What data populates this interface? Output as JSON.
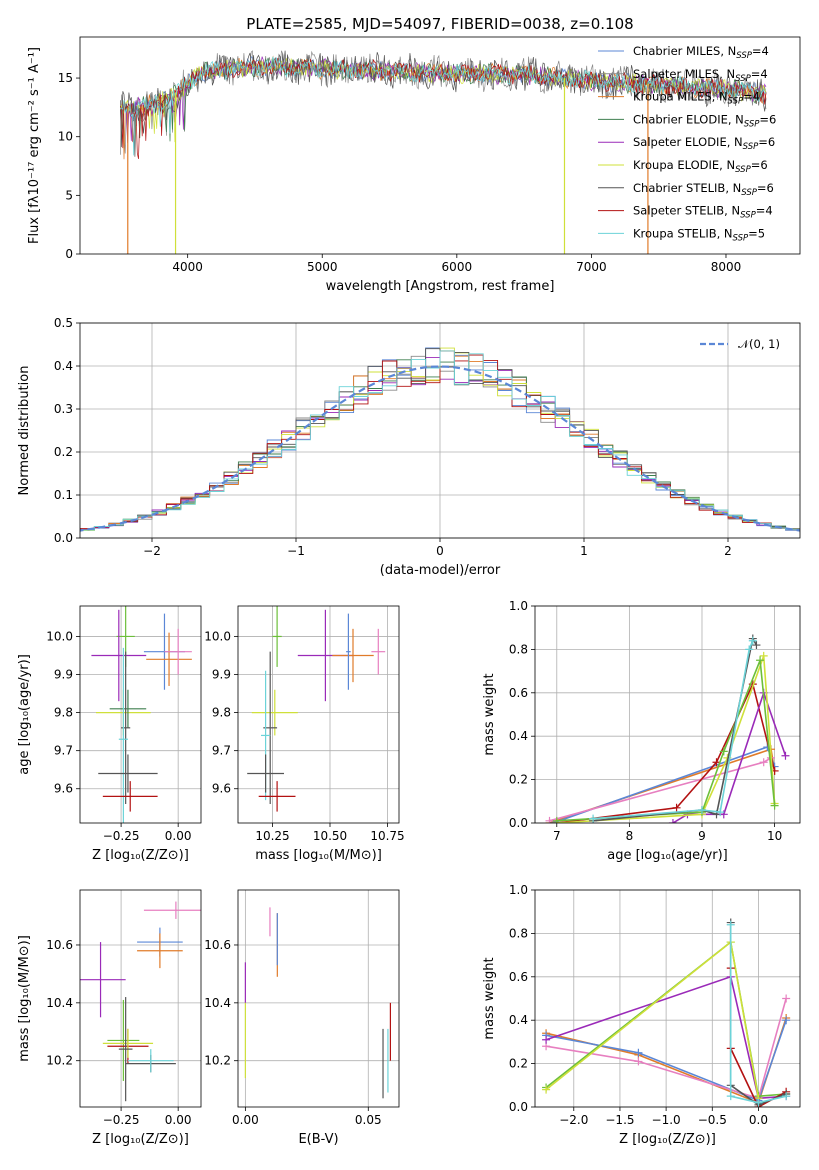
{
  "figure_title": "PLATE=2585, MJD=54097, FIBERID=0038, z=0.108",
  "colors": {
    "c_miles": "#5b87d6",
    "s_miles": "#8a8a8a",
    "k_miles": "#e07b2a",
    "c_elodie": "#3f7f4f",
    "s_elodie": "#9a2ab8",
    "k_elodie": "#cfe03a",
    "c_stelib": "#555555",
    "s_stelib": "#b31212",
    "k_stelib": "#6cd3d8",
    "pink": "#e77fc0",
    "green": "#6cbf3a",
    "gaussian": "#5b87d6"
  },
  "chart_data": [
    {
      "id": "spectrum",
      "type": "line",
      "xlabel": "wavelength [Angstrom, rest frame]",
      "ylabel": "Flux [fλ10⁻¹⁷ erg cm⁻² s⁻¹ A⁻¹]",
      "xlim": [
        3200,
        8550
      ],
      "ylim": [
        0,
        18.5
      ],
      "xticks": [
        "4000",
        "5000",
        "6000",
        "7000",
        "8000"
      ],
      "yticks": [
        "0",
        "5",
        "10",
        "15"
      ],
      "legend_position": "right",
      "series": [
        {
          "name": "Chabrier MILES, N",
          "sub": "SSP",
          "suffix": "=4",
          "color": "c_miles"
        },
        {
          "name": "Salpeter MILES, N",
          "sub": "SSP",
          "suffix": "=4",
          "color": "s_miles"
        },
        {
          "name": "Kroupa MILES, N",
          "sub": "SSP",
          "suffix": "=4",
          "color": "k_miles"
        },
        {
          "name": "Chabrier ELODIE, N",
          "sub": "SSP",
          "suffix": "=6",
          "color": "c_elodie"
        },
        {
          "name": "Salpeter ELODIE, N",
          "sub": "SSP",
          "suffix": "=6",
          "color": "s_elodie"
        },
        {
          "name": "Kroupa ELODIE, N",
          "sub": "SSP",
          "suffix": "=6",
          "color": "k_elodie"
        },
        {
          "name": "Chabrier STELIB, N",
          "sub": "SSP",
          "suffix": "=6",
          "color": "c_stelib"
        },
        {
          "name": "Salpeter STELIB, N",
          "sub": "SSP",
          "suffix": "=4",
          "color": "s_stelib"
        },
        {
          "name": "Kroupa STELIB, N",
          "sub": "SSP",
          "suffix": "=5",
          "color": "k_stelib"
        }
      ],
      "continuum": [
        [
          3500,
          12.5
        ],
        [
          3650,
          12.5
        ],
        [
          3800,
          13
        ],
        [
          3950,
          14
        ],
        [
          4100,
          15.5
        ],
        [
          4500,
          16
        ],
        [
          5000,
          15.8
        ],
        [
          5500,
          15.6
        ],
        [
          6000,
          15.4
        ],
        [
          6500,
          15.3
        ],
        [
          7000,
          14.8
        ],
        [
          7500,
          14.4
        ],
        [
          8000,
          14.1
        ],
        [
          8300,
          13.6
        ]
      ],
      "drops": [
        [
          3555,
          "k_miles"
        ],
        [
          3910,
          "k_elodie"
        ],
        [
          6800,
          "k_elodie"
        ],
        [
          7420,
          "k_miles"
        ]
      ]
    },
    {
      "id": "residuals",
      "type": "histogram",
      "xlabel": "(data-model)/error",
      "ylabel": "Normed distribution",
      "xlim": [
        -2.5,
        2.5
      ],
      "ylim": [
        0,
        0.5
      ],
      "xticks": [
        "−2",
        "−1",
        "0",
        "1",
        "2"
      ],
      "yticks": [
        "0.0",
        "0.1",
        "0.2",
        "0.3",
        "0.4",
        "0.5"
      ],
      "legend": "𝒩(0, 1)",
      "gaussian": {
        "mean": 0,
        "sigma": 1
      }
    },
    {
      "id": "age_vs_z",
      "type": "errorbar",
      "xlabel": "Z [log₁₀(Z/Z⊙)]",
      "ylabel": "age  [log₁₀(age/yr)]",
      "xlim": [
        -0.43,
        0.1
      ],
      "ylim": [
        9.51,
        10.08
      ],
      "xticks": [
        "−0.25",
        "0.00"
      ],
      "yticks": [
        "9.6",
        "9.7",
        "9.8",
        "9.9",
        "10.0"
      ],
      "points": [
        {
          "x": -0.23,
          "xe": 0.04,
          "y": 10.0,
          "ye": 0.08,
          "c": "green"
        },
        {
          "x": -0.26,
          "xe": 0.12,
          "y": 9.95,
          "ye": 0.12,
          "c": "s_elodie"
        },
        {
          "x": -0.06,
          "xe": 0.09,
          "y": 9.96,
          "ye": 0.1,
          "c": "c_miles"
        },
        {
          "x": -0.04,
          "xe": 0.1,
          "y": 9.94,
          "ye": 0.07,
          "c": "k_miles"
        },
        {
          "x": 0.0,
          "xe": 0.06,
          "y": 9.96,
          "ye": 0.06,
          "c": "pink"
        },
        {
          "x": -0.24,
          "xe": 0.12,
          "y": 9.8,
          "ye": 0.06,
          "c": "k_elodie"
        },
        {
          "x": -0.22,
          "xe": 0.08,
          "y": 9.81,
          "ye": 0.05,
          "c": "c_elodie"
        },
        {
          "x": -0.23,
          "xe": 0.02,
          "y": 9.76,
          "ye": 0.2,
          "c": "c_stelib"
        },
        {
          "x": -0.24,
          "xe": 0.02,
          "y": 9.73,
          "ye": 0.24,
          "c": "k_stelib"
        },
        {
          "x": -0.22,
          "xe": 0.13,
          "y": 9.64,
          "ye": 0.05,
          "c": "c_stelib"
        },
        {
          "x": -0.21,
          "xe": 0.12,
          "y": 9.58,
          "ye": 0.04,
          "c": "s_stelib"
        }
      ]
    },
    {
      "id": "age_vs_mass",
      "type": "errorbar",
      "xlabel": "mass [log₁₀(M/M⊙)]",
      "ylabel": "",
      "xlim": [
        10.1,
        10.8
      ],
      "ylim": [
        9.51,
        10.08
      ],
      "xticks": [
        "10.25",
        "10.50",
        "10.75"
      ],
      "yticks": [
        "9.6",
        "9.7",
        "9.8",
        "9.9",
        "10.0"
      ],
      "points": [
        {
          "x": 10.27,
          "xe": 0.02,
          "y": 10.0,
          "ye": 0.08,
          "c": "green"
        },
        {
          "x": 10.48,
          "xe": 0.12,
          "y": 9.95,
          "ye": 0.12,
          "c": "s_elodie"
        },
        {
          "x": 10.6,
          "xe": 0.09,
          "y": 9.95,
          "ye": 0.07,
          "c": "k_miles"
        },
        {
          "x": 10.58,
          "xe": 0.01,
          "y": 9.96,
          "ye": 0.1,
          "c": "c_miles"
        },
        {
          "x": 10.71,
          "xe": 0.03,
          "y": 9.96,
          "ye": 0.06,
          "c": "pink"
        },
        {
          "x": 10.26,
          "xe": 0.1,
          "y": 9.8,
          "ye": 0.06,
          "c": "k_elodie"
        },
        {
          "x": 10.24,
          "xe": 0.03,
          "y": 9.76,
          "ye": 0.2,
          "c": "c_stelib"
        },
        {
          "x": 10.22,
          "xe": 0.02,
          "y": 9.74,
          "ye": 0.17,
          "c": "k_stelib"
        },
        {
          "x": 10.22,
          "xe": 0.08,
          "y": 9.64,
          "ye": 0.05,
          "c": "c_stelib"
        },
        {
          "x": 10.27,
          "xe": 0.08,
          "y": 9.58,
          "ye": 0.04,
          "c": "s_stelib"
        }
      ]
    },
    {
      "id": "mass_weight_vs_age",
      "type": "line",
      "xlabel": "age  [log₁₀(age/yr)]",
      "ylabel": "mass weight",
      "xlim": [
        6.7,
        10.35
      ],
      "ylim": [
        0,
        1
      ],
      "xticks": [
        "7",
        "8",
        "9",
        "10"
      ],
      "yticks": [
        "0.0",
        "0.2",
        "0.4",
        "0.6",
        "0.8",
        "1.0"
      ],
      "series": [
        {
          "c": "k_miles",
          "pts": [
            [
              6.9,
              0
            ],
            [
              9.95,
              0.34
            ],
            [
              10.0,
              0.24
            ]
          ]
        },
        {
          "c": "c_miles",
          "pts": [
            [
              6.95,
              0
            ],
            [
              9.9,
              0.35
            ],
            [
              10.0,
              0.26
            ]
          ]
        },
        {
          "c": "pink",
          "pts": [
            [
              6.9,
              0.01
            ],
            [
              9.85,
              0.28
            ],
            [
              9.95,
              0.3
            ]
          ]
        },
        {
          "c": "s_stelib",
          "pts": [
            [
              7.0,
              0
            ],
            [
              8.65,
              0.07
            ],
            [
              9.2,
              0.28
            ],
            [
              9.7,
              0.64
            ],
            [
              10.0,
              0.24
            ]
          ]
        },
        {
          "c": "s_elodie",
          "pts": [
            [
              8.6,
              0
            ],
            [
              8.8,
              0.04
            ],
            [
              9.3,
              0.04
            ],
            [
              9.85,
              0.6
            ],
            [
              10.15,
              0.31
            ]
          ]
        },
        {
          "c": "k_elodie",
          "pts": [
            [
              7.0,
              0
            ],
            [
              9.0,
              0.04
            ],
            [
              9.35,
              0.3
            ],
            [
              9.85,
              0.77
            ],
            [
              10.0,
              0.09
            ]
          ]
        },
        {
          "c": "green",
          "pts": [
            [
              7.0,
              0.01
            ],
            [
              9.0,
              0.05
            ],
            [
              9.3,
              0.33
            ],
            [
              9.8,
              0.75
            ],
            [
              10.0,
              0.08
            ]
          ]
        },
        {
          "c": "c_stelib",
          "pts": [
            [
              7.5,
              0.01
            ],
            [
              9.0,
              0.06
            ],
            [
              9.2,
              0.04
            ],
            [
              9.7,
              0.85
            ],
            [
              9.75,
              0.82
            ]
          ]
        },
        {
          "c": "k_stelib",
          "pts": [
            [
              7.5,
              0.02
            ],
            [
              9.0,
              0.06
            ],
            [
              9.25,
              0.05
            ],
            [
              9.65,
              0.8
            ],
            [
              9.7,
              0.84
            ]
          ]
        }
      ]
    },
    {
      "id": "mass_vs_z",
      "type": "errorbar",
      "xlabel": "Z [log₁₀(Z/Z⊙)]",
      "ylabel": "mass [log₁₀(M/M⊙)]",
      "xlim": [
        -0.43,
        0.1
      ],
      "ylim": [
        10.04,
        10.79
      ],
      "xticks": [
        "−0.25",
        "0.00"
      ],
      "yticks": [
        "10.2",
        "10.4",
        "10.6"
      ],
      "points": [
        {
          "x": -0.01,
          "xe": 0.14,
          "y": 10.72,
          "ye": 0.03,
          "c": "pink"
        },
        {
          "x": -0.08,
          "xe": 0.1,
          "y": 10.61,
          "ye": 0.05,
          "c": "c_miles"
        },
        {
          "x": -0.08,
          "xe": 0.1,
          "y": 10.58,
          "ye": 0.06,
          "c": "k_miles"
        },
        {
          "x": -0.34,
          "xe": 0.11,
          "y": 10.48,
          "ye": 0.13,
          "c": "s_elodie"
        },
        {
          "x": -0.24,
          "xe": 0.07,
          "y": 10.27,
          "ye": 0.14,
          "c": "green"
        },
        {
          "x": -0.22,
          "xe": 0.09,
          "y": 10.25,
          "ye": 0.06,
          "c": "s_stelib"
        },
        {
          "x": -0.22,
          "xe": 0.11,
          "y": 10.26,
          "ye": 0.05,
          "c": "k_elodie"
        },
        {
          "x": -0.23,
          "xe": 0.03,
          "y": 10.24,
          "ye": 0.18,
          "c": "c_stelib"
        },
        {
          "x": -0.12,
          "xe": 0.11,
          "y": 10.19,
          "ye": 0.03,
          "c": "c_stelib"
        },
        {
          "x": -0.12,
          "xe": 0.1,
          "y": 10.2,
          "ye": 0.04,
          "c": "k_stelib"
        }
      ]
    },
    {
      "id": "mass_vs_ebv",
      "type": "errorbar",
      "xlabel": "E(B-V)",
      "ylabel": "",
      "xlim": [
        -0.003,
        0.0625
      ],
      "ylim": [
        10.04,
        10.79
      ],
      "xticks": [
        "0.00",
        "0.05"
      ],
      "yticks": [
        "10.2",
        "10.4",
        "10.6"
      ],
      "points": [
        {
          "x": 0.01,
          "xe": 0,
          "y": 10.68,
          "ye": 0.05,
          "c": "pink"
        },
        {
          "x": 0.013,
          "xe": 0,
          "y": 10.6,
          "ye": 0.11,
          "c": "k_miles"
        },
        {
          "x": 0.013,
          "xe": 0,
          "y": 10.62,
          "ye": 0.09,
          "c": "c_miles"
        },
        {
          "x": 0.0,
          "xe": 0,
          "y": 10.47,
          "ye": 0.07,
          "c": "s_elodie"
        },
        {
          "x": 0.0,
          "xe": 0,
          "y": 10.27,
          "ye": 0.13,
          "c": "k_elodie"
        },
        {
          "x": 0.059,
          "xe": 0,
          "y": 10.3,
          "ye": 0.1,
          "c": "s_stelib"
        },
        {
          "x": 0.058,
          "xe": 0,
          "y": 10.2,
          "ye": 0.11,
          "c": "k_stelib"
        },
        {
          "x": 0.056,
          "xe": 0,
          "y": 10.19,
          "ye": 0.12,
          "c": "c_stelib"
        }
      ]
    },
    {
      "id": "mass_weight_vs_z",
      "type": "line",
      "xlabel": "Z [log₁₀(Z/Z⊙)]",
      "ylabel": "mass weight",
      "xlim": [
        -2.42,
        0.45
      ],
      "ylim": [
        0,
        1
      ],
      "xticks": [
        "−2.0",
        "−1.5",
        "−1.0",
        "−0.5",
        "0.0"
      ],
      "yticks": [
        "0.0",
        "0.2",
        "0.4",
        "0.6",
        "0.8",
        "1.0"
      ],
      "series": [
        {
          "c": "k_miles",
          "pts": [
            [
              -2.3,
              0.34
            ],
            [
              -1.3,
              0.24
            ],
            [
              0.0,
              0.02
            ],
            [
              0.3,
              0.41
            ]
          ]
        },
        {
          "c": "c_miles",
          "pts": [
            [
              -2.3,
              0.33
            ],
            [
              -1.3,
              0.25
            ],
            [
              0.0,
              0.03
            ],
            [
              0.3,
              0.4
            ]
          ]
        },
        {
          "c": "pink",
          "pts": [
            [
              -2.3,
              0.28
            ],
            [
              -1.3,
              0.21
            ],
            [
              0.0,
              0.04
            ],
            [
              0.3,
              0.5
            ]
          ]
        },
        {
          "c": "s_elodie",
          "pts": [
            [
              -2.3,
              0.31
            ],
            [
              -0.3,
              0.6
            ],
            [
              0.0,
              0.04
            ],
            [
              0.3,
              0.05
            ]
          ]
        },
        {
          "c": "green",
          "pts": [
            [
              -2.3,
              0.09
            ],
            [
              -0.3,
              0.76
            ],
            [
              0.0,
              0.05
            ],
            [
              0.3,
              0.06
            ]
          ]
        },
        {
          "c": "k_elodie",
          "pts": [
            [
              -2.3,
              0.08
            ],
            [
              -0.3,
              0.76
            ],
            [
              0.0,
              0.04
            ]
          ]
        },
        {
          "c": "s_stelib",
          "pts": [
            [
              -0.3,
              0.64
            ],
            [
              -0.3,
              0.27
            ],
            [
              0.0,
              0.0
            ],
            [
              0.3,
              0.07
            ]
          ]
        },
        {
          "c": "c_stelib",
          "pts": [
            [
              -0.3,
              0.85
            ],
            [
              -0.3,
              0.1
            ],
            [
              0.0,
              0.01
            ],
            [
              0.3,
              0.06
            ]
          ]
        },
        {
          "c": "k_stelib",
          "pts": [
            [
              -0.3,
              0.84
            ],
            [
              -0.3,
              0.05
            ],
            [
              0.0,
              0.02
            ],
            [
              0.3,
              0.05
            ]
          ]
        }
      ]
    }
  ]
}
